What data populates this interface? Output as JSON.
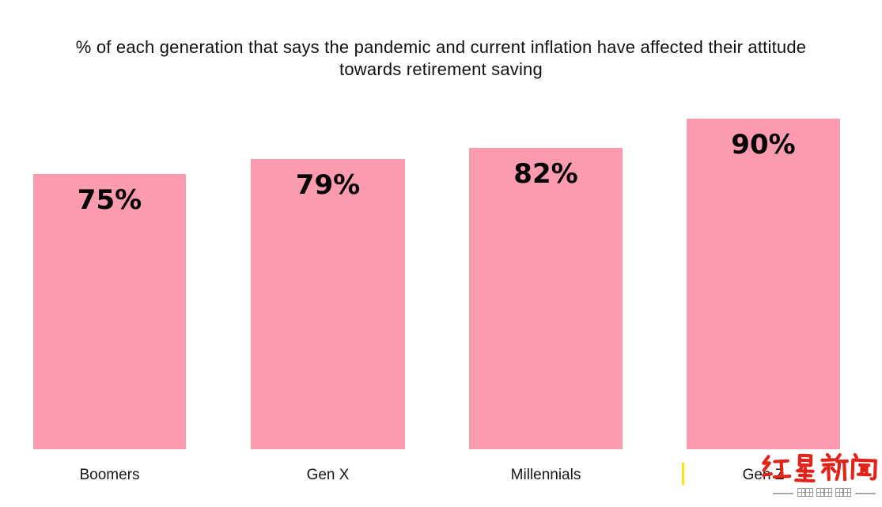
{
  "title": {
    "line1": "% of each generation that says the pandemic and current inflation have affected their attitude",
    "line2": "towards retirement saving"
  },
  "chart_data": {
    "type": "bar",
    "title": "% of each generation that says the pandemic and current inflation have affected their attitude towards retirement saving",
    "categories": [
      "Boomers",
      "Gen X",
      "Millennials",
      "Gen Z"
    ],
    "values": [
      75,
      79,
      82,
      90
    ],
    "value_labels": [
      "75%",
      "79%",
      "82%",
      "90%"
    ],
    "xlabel": "",
    "ylabel": "",
    "ylim": [
      0,
      100
    ],
    "grid": false,
    "legend": false,
    "bar_color": "#FA9BAF",
    "value_label_color": "#050505",
    "background_color": "#FFFFFF"
  },
  "watermark": {
    "logo_text": "红星新闻",
    "logo_color": "#E2231A",
    "tagline": "深度 态度 温度",
    "tagline_display": "—— 深度 态度 温度 ——",
    "tagline_color": "#9A9A9A",
    "cursor_color": "#FFE10A"
  }
}
